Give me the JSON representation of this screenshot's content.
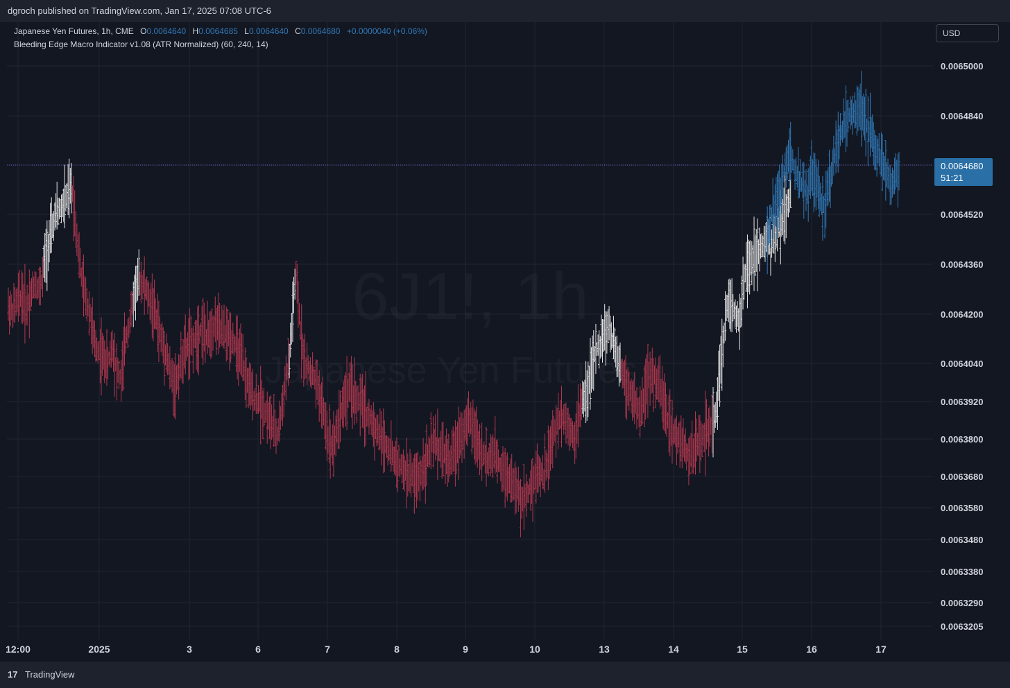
{
  "publisher": "dgroch published on TradingView.com, Jan 17, 2025 07:08 UTC-6",
  "legend": {
    "symbol": "Japanese Yen Futures, 1h, CME",
    "o_label": "O",
    "o_value": "0.0064640",
    "h_label": "H",
    "h_value": "0.0064685",
    "l_label": "L",
    "l_value": "0.0064640",
    "c_label": "C",
    "c_value": "0.0064680",
    "change": "+0.0000040 (+0.06%)",
    "indicator": "Bleeding Edge Macro Indicator v1.08 (ATR Normalized) (60, 240, 14)"
  },
  "currency": "USD",
  "last_price": {
    "price": "0.0064680",
    "countdown": "51:21"
  },
  "watermark": {
    "symbol": "6J1!, 1h",
    "name": "Japanese Yen Futures"
  },
  "footer": {
    "logo": "17",
    "brand": "TradingView"
  },
  "colors": {
    "bearish": "#b2384f",
    "neutral": "#e8e8e8",
    "bullish": "#3179b7",
    "background": "#131722"
  },
  "chart_data": {
    "type": "bar",
    "xlabels": [
      "12:00",
      "2025",
      "3",
      "6",
      "7",
      "8",
      "9",
      "10",
      "13",
      "14",
      "15",
      "16",
      "17"
    ],
    "yticks": [
      "0.0065000",
      "0.0064840",
      "0.0064680",
      "0.0064520",
      "0.0064360",
      "0.0064200",
      "0.0064040",
      "0.0063920",
      "0.0063800",
      "0.0063680",
      "0.0063580",
      "0.0063480",
      "0.0063380",
      "0.0063290",
      "0.0063205"
    ],
    "grid": true,
    "current_price": 0.006468,
    "series": [
      {
        "color_state": "bearish",
        "path": [
          [
            0,
            0.006422
          ],
          [
            4,
            0.006421
          ],
          [
            8,
            0.006424
          ],
          [
            12,
            0.006426
          ],
          [
            16,
            0.006422
          ],
          [
            20,
            0.006426
          ],
          [
            24,
            0.00643
          ],
          [
            28,
            0.006428
          ],
          [
            32,
            0.006433
          ]
        ]
      },
      {
        "color_state": "neutral",
        "path": [
          [
            32,
            0.006436
          ],
          [
            36,
            0.006442
          ],
          [
            40,
            0.006448
          ],
          [
            44,
            0.006453
          ],
          [
            48,
            0.006454
          ],
          [
            52,
            0.006457
          ],
          [
            56,
            0.00646
          ],
          [
            58,
            0.006461
          ]
        ]
      },
      {
        "color_state": "bearish",
        "path": [
          [
            58,
            0.006459
          ],
          [
            62,
            0.006445
          ],
          [
            66,
            0.006432
          ],
          [
            70,
            0.006425
          ],
          [
            74,
            0.00642
          ],
          [
            78,
            0.00641
          ],
          [
            82,
            0.006408
          ],
          [
            86,
            0.006406
          ],
          [
            90,
            0.006404
          ],
          [
            94,
            0.00641
          ],
          [
            98,
            0.006402
          ],
          [
            102,
            0.006399
          ],
          [
            106,
            0.006412
          ],
          [
            110,
            0.006418
          ],
          [
            113,
            0.006425
          ]
        ]
      },
      {
        "color_state": "neutral",
        "path": [
          [
            113,
            0.006425
          ],
          [
            116,
            0.00643
          ],
          [
            119,
            0.006431
          ]
        ]
      },
      {
        "color_state": "bearish",
        "path": [
          [
            119,
            0.006431
          ],
          [
            123,
            0.006429
          ],
          [
            127,
            0.006425
          ],
          [
            131,
            0.006422
          ],
          [
            135,
            0.006417
          ],
          [
            139,
            0.006411
          ],
          [
            143,
            0.006407
          ],
          [
            147,
            0.0064
          ],
          [
            151,
            0.006397
          ],
          [
            155,
            0.006403
          ],
          [
            159,
            0.006408
          ],
          [
            163,
            0.00641
          ],
          [
            167,
            0.006411
          ],
          [
            171,
            0.006413
          ],
          [
            175,
            0.006416
          ],
          [
            179,
            0.006412
          ],
          [
            183,
            0.006415
          ],
          [
            187,
            0.006417
          ],
          [
            191,
            0.006415
          ],
          [
            195,
            0.006414
          ],
          [
            199,
            0.006413
          ],
          [
            203,
            0.006412
          ],
          [
            207,
            0.006408
          ],
          [
            211,
            0.006405
          ],
          [
            215,
            0.006399
          ],
          [
            219,
            0.006395
          ],
          [
            223,
            0.006393
          ],
          [
            227,
            0.006392
          ],
          [
            231,
            0.00639
          ],
          [
            235,
            0.006387
          ],
          [
            239,
            0.006384
          ],
          [
            243,
            0.006381
          ],
          [
            247,
            0.006389
          ],
          [
            251,
            0.0064
          ],
          [
            254,
            0.006404
          ]
        ]
      },
      {
        "color_state": "neutral",
        "path": [
          [
            254,
            0.006405
          ],
          [
            257,
            0.006421
          ],
          [
            260,
            0.006433
          ]
        ]
      },
      {
        "color_state": "bearish",
        "path": [
          [
            260,
            0.006432
          ],
          [
            264,
            0.006415
          ],
          [
            268,
            0.006404
          ],
          [
            272,
            0.006402
          ],
          [
            276,
            0.0064
          ],
          [
            280,
            0.006396
          ],
          [
            284,
            0.00639
          ],
          [
            288,
            0.006382
          ],
          [
            292,
            0.006378
          ],
          [
            296,
            0.006381
          ],
          [
            300,
            0.006388
          ],
          [
            304,
            0.006393
          ],
          [
            308,
            0.006396
          ],
          [
            312,
            0.006394
          ],
          [
            316,
            0.006392
          ],
          [
            320,
            0.006391
          ],
          [
            324,
            0.006388
          ],
          [
            328,
            0.006386
          ],
          [
            332,
            0.006383
          ],
          [
            336,
            0.006381
          ],
          [
            340,
            0.006379
          ],
          [
            344,
            0.006377
          ],
          [
            348,
            0.006374
          ],
          [
            352,
            0.006372
          ],
          [
            356,
            0.00637
          ],
          [
            360,
            0.006369
          ],
          [
            364,
            0.006368
          ],
          [
            368,
            0.006367
          ],
          [
            372,
            0.006368
          ],
          [
            376,
            0.006372
          ],
          [
            380,
            0.006375
          ],
          [
            384,
            0.006379
          ],
          [
            388,
            0.006378
          ],
          [
            392,
            0.006376
          ],
          [
            396,
            0.006374
          ],
          [
            400,
            0.006373
          ],
          [
            404,
            0.006377
          ],
          [
            408,
            0.006381
          ],
          [
            412,
            0.006383
          ],
          [
            416,
            0.006386
          ],
          [
            420,
            0.006384
          ],
          [
            424,
            0.006379
          ],
          [
            428,
            0.006376
          ],
          [
            432,
            0.006373
          ],
          [
            436,
            0.006374
          ],
          [
            440,
            0.006375
          ],
          [
            444,
            0.006372
          ],
          [
            448,
            0.00637
          ],
          [
            452,
            0.006368
          ],
          [
            456,
            0.006366
          ],
          [
            460,
            0.006363
          ],
          [
            464,
            0.00636
          ],
          [
            468,
            0.006362
          ],
          [
            472,
            0.006365
          ],
          [
            476,
            0.006368
          ],
          [
            480,
            0.00637
          ],
          [
            484,
            0.006368
          ],
          [
            488,
            0.006374
          ],
          [
            492,
            0.00638
          ],
          [
            496,
            0.006385
          ],
          [
            500,
            0.006388
          ],
          [
            504,
            0.006386
          ],
          [
            508,
            0.006383
          ],
          [
            512,
            0.006381
          ],
          [
            516,
            0.006388
          ],
          [
            519,
            0.006392
          ]
        ]
      },
      {
        "color_state": "neutral",
        "path": [
          [
            519,
            0.006392
          ],
          [
            523,
            0.006396
          ],
          [
            527,
            0.006402
          ],
          [
            531,
            0.006408
          ],
          [
            535,
            0.00641
          ],
          [
            539,
            0.006414
          ],
          [
            543,
            0.006416
          ],
          [
            547,
            0.00641
          ],
          [
            551,
            0.006405
          ],
          [
            554,
            0.006402
          ]
        ]
      },
      {
        "color_state": "bearish",
        "path": [
          [
            554,
            0.006402
          ],
          [
            558,
            0.006398
          ],
          [
            562,
            0.006395
          ],
          [
            566,
            0.006391
          ],
          [
            570,
            0.006389
          ],
          [
            574,
            0.006393
          ],
          [
            578,
            0.006399
          ],
          [
            582,
            0.006401
          ],
          [
            586,
            0.006398
          ],
          [
            590,
            0.006395
          ],
          [
            594,
            0.006389
          ],
          [
            598,
            0.006384
          ],
          [
            602,
            0.006381
          ],
          [
            606,
            0.00638
          ],
          [
            610,
            0.006378
          ],
          [
            614,
            0.006375
          ],
          [
            618,
            0.006375
          ],
          [
            622,
            0.006378
          ],
          [
            626,
            0.00638
          ],
          [
            630,
            0.006382
          ],
          [
            634,
            0.006383
          ],
          [
            637,
            0.006384
          ]
        ]
      },
      {
        "color_state": "neutral",
        "path": [
          [
            637,
            0.006384
          ],
          [
            641,
            0.006394
          ],
          [
            645,
            0.006408
          ],
          [
            649,
            0.006422
          ],
          [
            653,
            0.006424
          ],
          [
            657,
            0.00642
          ],
          [
            661,
            0.006418
          ],
          [
            665,
            0.006431
          ],
          [
            669,
            0.006436
          ],
          [
            673,
            0.006438
          ],
          [
            677,
            0.00644
          ],
          [
            681,
            0.006442
          ],
          [
            685,
            0.006443
          ],
          [
            689,
            0.006444
          ],
          [
            693,
            0.006445
          ],
          [
            697,
            0.006449
          ],
          [
            701,
            0.006452
          ],
          [
            705,
            0.006456
          ],
          [
            708,
            0.006459
          ]
        ]
      },
      {
        "color_state": "bullish",
        "path": [
          [
            686,
            0.006444
          ],
          [
            690,
            0.006452
          ],
          [
            694,
            0.006456
          ],
          [
            698,
            0.00646
          ],
          [
            702,
            0.006468
          ],
          [
            706,
            0.006472
          ],
          [
            710,
            0.006468
          ],
          [
            714,
            0.006464
          ],
          [
            718,
            0.006461
          ],
          [
            722,
            0.006458
          ],
          [
            726,
            0.006465
          ],
          [
            730,
            0.006462
          ],
          [
            734,
            0.006457
          ],
          [
            738,
            0.006454
          ],
          [
            742,
            0.006462
          ],
          [
            746,
            0.006469
          ],
          [
            750,
            0.006476
          ],
          [
            754,
            0.00648
          ],
          [
            758,
            0.006483
          ],
          [
            762,
            0.006486
          ],
          [
            766,
            0.006485
          ],
          [
            770,
            0.006487
          ],
          [
            774,
            0.006482
          ],
          [
            778,
            0.006479
          ],
          [
            782,
            0.006476
          ],
          [
            786,
            0.006472
          ],
          [
            790,
            0.006469
          ],
          [
            794,
            0.006465
          ],
          [
            798,
            0.006462
          ],
          [
            802,
            0.006464
          ],
          [
            806,
            0.006466
          ]
        ]
      }
    ]
  }
}
